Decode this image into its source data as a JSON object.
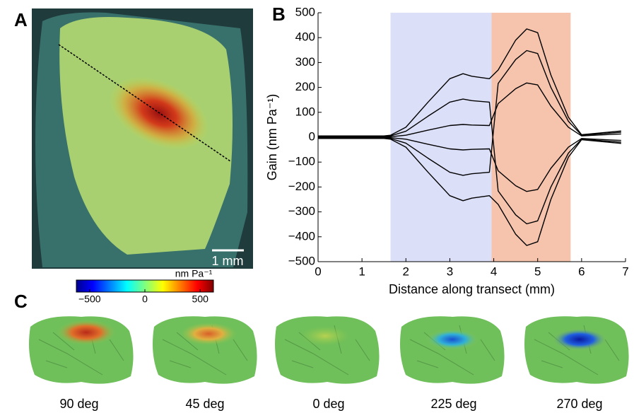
{
  "panel_labels": [
    "A",
    "B",
    "C"
  ],
  "scale_bar": "1 mm",
  "colorbar": {
    "label": "nm Pa⁻¹",
    "lim": [
      -620,
      620
    ],
    "ticks": [
      {
        "value": -500,
        "label": "−500"
      },
      0,
      500
    ]
  },
  "captions": [
    "90 deg",
    "45 deg",
    "0 deg",
    "225 deg",
    "270 deg"
  ],
  "chart_data": {
    "type": "line",
    "xlabel": "Distance along transect (mm)",
    "ylabel": "Gain (nm Pa⁻¹)",
    "x": [
      0,
      0.5,
      1,
      1.5,
      1.65,
      2,
      2.5,
      3,
      3.3,
      3.5,
      3.9,
      4.1,
      4.5,
      4.75,
      5,
      5.3,
      5.7,
      6,
      6.3,
      6.9
    ],
    "series": [
      {
        "color": "#000000",
        "values": [
          5,
          5,
          5,
          5,
          8,
          40,
          140,
          235,
          255,
          245,
          235,
          270,
          390,
          435,
          420,
          250,
          80,
          10,
          15,
          25
        ]
      },
      {
        "color": "#000000",
        "values": [
          -5,
          -5,
          -5,
          -5,
          -8,
          -40,
          -140,
          -235,
          -255,
          -245,
          -235,
          -270,
          -390,
          -435,
          -420,
          -250,
          -80,
          -10,
          -15,
          -25
        ]
      },
      {
        "color": "#000000",
        "values": [
          3,
          3,
          3,
          3,
          5,
          24,
          84,
          141,
          153,
          147,
          141,
          -216,
          -312,
          -348,
          -336,
          -200,
          -64,
          -8,
          -12,
          -20
        ]
      },
      {
        "color": "#000000",
        "values": [
          -3,
          -3,
          -3,
          -3,
          -5,
          -24,
          -84,
          -141,
          -153,
          -147,
          -141,
          216,
          312,
          348,
          336,
          200,
          64,
          8,
          12,
          20
        ]
      },
      {
        "color": "#000000",
        "values": [
          1,
          1,
          1,
          1,
          2,
          8,
          28,
          47,
          51,
          49,
          47,
          135,
          195,
          218,
          210,
          125,
          40,
          5,
          8,
          13
        ]
      },
      {
        "color": "#000000",
        "values": [
          -1,
          -1,
          -1,
          -1,
          -2,
          -8,
          -28,
          -47,
          -51,
          -49,
          -47,
          -135,
          -195,
          -218,
          -210,
          -125,
          -40,
          -5,
          -8,
          -13
        ]
      }
    ],
    "shaded_regions": [
      {
        "x": [
          1.65,
          3.95
        ],
        "color": "#dcdff8"
      },
      {
        "x": [
          3.95,
          5.75
        ],
        "color": "#f6c3ad"
      }
    ],
    "xlim": [
      0,
      7
    ],
    "xticks": [
      0,
      1,
      2,
      3,
      4,
      5,
      6,
      7
    ],
    "ylim": [
      -500,
      500
    ],
    "yticks": [
      {
        "value": -500,
        "label": "−500"
      },
      {
        "value": -400,
        "label": "−400"
      },
      {
        "value": -300,
        "label": "−300"
      },
      {
        "value": -200,
        "label": "−200"
      },
      {
        "value": -100,
        "label": "−100"
      },
      0,
      100,
      200,
      300,
      400,
      500
    ],
    "grid": false
  }
}
